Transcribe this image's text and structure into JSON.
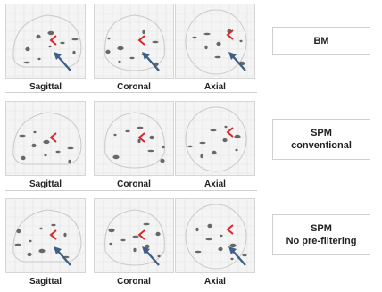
{
  "rows": [
    {
      "method": [
        "BM"
      ],
      "panels": [
        {
          "view": "sagittal",
          "label": "Sagittal"
        },
        {
          "view": "coronal",
          "label": "Coronal"
        },
        {
          "view": "axial",
          "label": "Axial"
        }
      ],
      "arrows": true
    },
    {
      "method": [
        "SPM",
        "conventional"
      ],
      "panels": [
        {
          "view": "sagittal",
          "label": "Sagittal"
        },
        {
          "view": "coronal",
          "label": "Coronal"
        },
        {
          "view": "axial",
          "label": "Axial"
        }
      ],
      "arrows": false
    },
    {
      "method": [
        "SPM",
        "No pre-filtering"
      ],
      "panels": [
        {
          "view": "sagittal",
          "label": "Sagittal"
        },
        {
          "view": "coronal",
          "label": "Coronal"
        },
        {
          "view": "axial",
          "label": "Axial"
        }
      ],
      "arrows": true
    }
  ],
  "colors": {
    "marker": "#d8262b",
    "arrow": "#3f5f86",
    "blob": "#3a3a3a"
  }
}
